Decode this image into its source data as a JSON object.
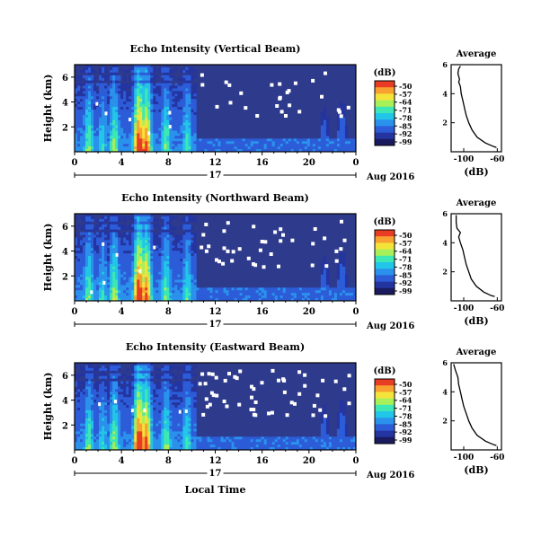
{
  "chart_data": [
    {
      "type": "heatmap",
      "title": "Echo Intensity (Vertical Beam)",
      "ylabel": "Height (km)",
      "yticks": [
        "6",
        "4",
        "2"
      ],
      "xticks": [
        "0",
        "4",
        "8",
        "12",
        "16",
        "20",
        "0"
      ],
      "day_label": "17",
      "date_label": "Aug 2016",
      "colorbar": {
        "unit": "(dB)",
        "ticks": [
          "-50",
          "-57",
          "-64",
          "-71",
          "-78",
          "-85",
          "-92",
          "-99"
        ]
      },
      "profile": {
        "title": "Average",
        "xlabel": "(dB)",
        "xticks": [
          "-100",
          "-60"
        ],
        "yticks": [
          "6",
          "4",
          "2"
        ],
        "xlim": [
          -115,
          -55
        ],
        "ylim": [
          0,
          6
        ],
        "points": [
          [
            -104,
            5.9
          ],
          [
            -106,
            5.7
          ],
          [
            -107,
            5.4
          ],
          [
            -106,
            5.2
          ],
          [
            -105,
            5.0
          ],
          [
            -106,
            4.8
          ],
          [
            -104,
            4.5
          ],
          [
            -103,
            4.0
          ],
          [
            -101,
            3.5
          ],
          [
            -99,
            3.0
          ],
          [
            -97,
            2.5
          ],
          [
            -94,
            2.0
          ],
          [
            -90,
            1.5
          ],
          [
            -84,
            1.0
          ],
          [
            -74,
            0.6
          ],
          [
            -64,
            0.35
          ],
          [
            -61,
            0.3
          ]
        ]
      }
    },
    {
      "type": "heatmap",
      "title": "Echo Intensity (Northward Beam)",
      "ylabel": "Height (km)",
      "yticks": [
        "6",
        "4",
        "2"
      ],
      "xticks": [
        "0",
        "4",
        "8",
        "12",
        "16",
        "20",
        "0"
      ],
      "day_label": "17",
      "date_label": "Aug 2016",
      "colorbar": {
        "unit": "(dB)",
        "ticks": [
          "-50",
          "-57",
          "-64",
          "-71",
          "-78",
          "-85",
          "-92",
          "-99"
        ]
      },
      "profile": {
        "title": "Average",
        "xlabel": "(dB)",
        "xticks": [
          "-100",
          "-60"
        ],
        "yticks": [
          "6",
          "4",
          "2"
        ],
        "xlim": [
          -115,
          -55
        ],
        "ylim": [
          0,
          6
        ],
        "points": [
          [
            -109,
            5.9
          ],
          [
            -109,
            5.4
          ],
          [
            -108,
            5.0
          ],
          [
            -104,
            4.7
          ],
          [
            -106,
            4.4
          ],
          [
            -104,
            4.0
          ],
          [
            -101,
            3.5
          ],
          [
            -99,
            3.0
          ],
          [
            -97,
            2.5
          ],
          [
            -94,
            2.0
          ],
          [
            -91,
            1.5
          ],
          [
            -85,
            1.0
          ],
          [
            -76,
            0.6
          ],
          [
            -67,
            0.35
          ],
          [
            -63,
            0.3
          ]
        ]
      }
    },
    {
      "type": "heatmap",
      "title": "Echo Intensity (Eastward Beam)",
      "ylabel": "Height (km)",
      "yticks": [
        "6",
        "4",
        "2"
      ],
      "xticks": [
        "0",
        "4",
        "8",
        "12",
        "16",
        "20",
        "0"
      ],
      "day_label": "17",
      "date_label": "Aug 2016",
      "xlabel": "Local Time",
      "colorbar": {
        "unit": "(dB)",
        "ticks": [
          "-50",
          "-57",
          "-64",
          "-71",
          "-78",
          "-85",
          "-92",
          "-99"
        ]
      },
      "profile": {
        "title": "Average",
        "xlabel": "(dB)",
        "xticks": [
          "-100",
          "-60"
        ],
        "yticks": [
          "6",
          "4",
          "2"
        ],
        "xlim": [
          -115,
          -55
        ],
        "ylim": [
          0,
          6
        ],
        "points": [
          [
            -112,
            5.9
          ],
          [
            -110,
            5.5
          ],
          [
            -107,
            5.0
          ],
          [
            -106,
            4.5
          ],
          [
            -104,
            4.0
          ],
          [
            -102,
            3.5
          ],
          [
            -100,
            3.0
          ],
          [
            -97,
            2.5
          ],
          [
            -94,
            2.0
          ],
          [
            -90,
            1.5
          ],
          [
            -84,
            1.0
          ],
          [
            -74,
            0.6
          ],
          [
            -64,
            0.35
          ],
          [
            -61,
            0.3
          ]
        ]
      }
    }
  ],
  "colors": {
    "background_echo": "#2e3a8c",
    "colorscale": [
      "#1a1a5e",
      "#2434a0",
      "#2c5cd8",
      "#2a92ec",
      "#22c6e8",
      "#3ee8b4",
      "#a8f05a",
      "#f4e43a",
      "#f8a030",
      "#e83c24"
    ]
  }
}
